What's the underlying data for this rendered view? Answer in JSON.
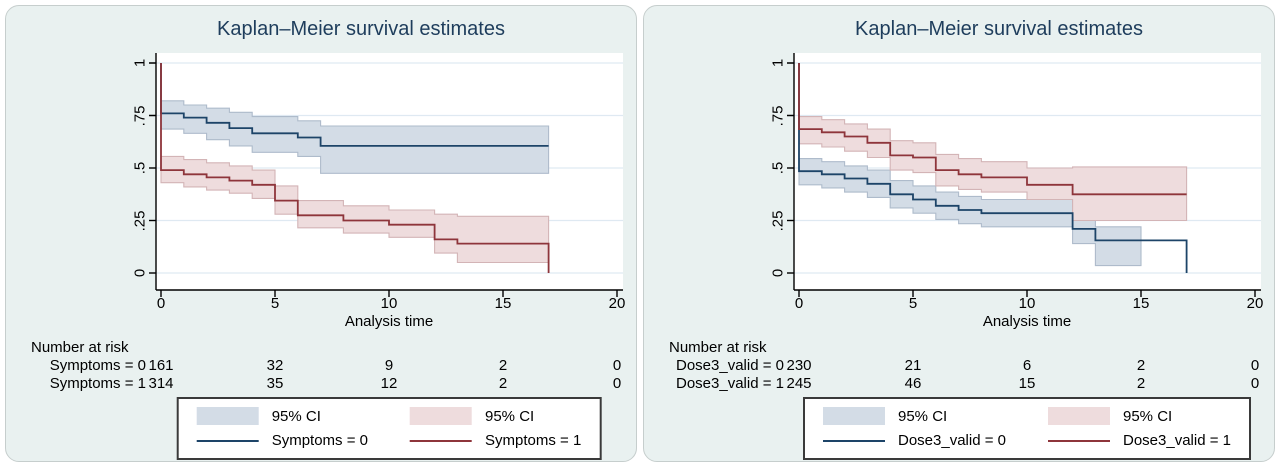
{
  "colors": {
    "page_bg": "#ffffff",
    "panel_bg": "#e9f1f0",
    "panel_border": "#c6cecd",
    "plot_bg": "#ffffff",
    "grid": "#dfe9f2",
    "axis": "#000000",
    "title_text": "#1e3d5c",
    "navy": {
      "line": "#1d4468",
      "band": "#d3dce6",
      "band_edge": "#aebbcb"
    },
    "red": {
      "line": "#8e353b",
      "band": "#eedcdd",
      "band_edge": "#d3b4b6"
    }
  },
  "chart_data": [
    {
      "type": "line",
      "subtype": "kaplan_meier_step_with_ci",
      "title": "Kaplan–Meier survival estimates",
      "xlabel": "Analysis time",
      "xlim": [
        0,
        20
      ],
      "ylim": [
        0,
        1
      ],
      "x_ticks": [
        0,
        5,
        10,
        15,
        20
      ],
      "y_ticks": [
        0,
        0.25,
        0.5,
        0.75,
        1
      ],
      "y_tick_labels": [
        "0",
        ".25",
        ".5",
        ".75",
        "1"
      ],
      "grid": "horizontal",
      "legend_position": "bottom-center",
      "legend": {
        "ci_labels": [
          "95% CI",
          "95% CI"
        ],
        "series_labels": [
          "Symptoms = 0",
          "Symptoms = 1"
        ]
      },
      "series": [
        {
          "name": "Symptoms = 0",
          "color_key": "navy",
          "steps_format": [
            "t",
            "survival",
            "ci_lower",
            "ci_upper"
          ],
          "steps": [
            [
              0,
              0.76,
              0.685,
              0.82
            ],
            [
              1,
              0.74,
              0.665,
              0.8
            ],
            [
              2,
              0.715,
              0.635,
              0.785
            ],
            [
              3,
              0.69,
              0.605,
              0.765
            ],
            [
              4,
              0.665,
              0.575,
              0.745
            ],
            [
              6,
              0.645,
              0.555,
              0.725
            ],
            [
              7,
              0.605,
              0.475,
              0.7
            ]
          ],
          "end_t": 17,
          "band_end_t": 17,
          "drop_to_zero_at_end": false
        },
        {
          "name": "Symptoms = 1",
          "color_key": "red",
          "steps_format": [
            "t",
            "survival",
            "ci_lower",
            "ci_upper"
          ],
          "steps": [
            [
              0,
              0.49,
              0.43,
              0.555
            ],
            [
              1,
              0.47,
              0.41,
              0.54
            ],
            [
              2,
              0.455,
              0.395,
              0.525
            ],
            [
              3,
              0.44,
              0.38,
              0.51
            ],
            [
              4,
              0.42,
              0.355,
              0.49
            ],
            [
              5,
              0.345,
              0.28,
              0.415
            ],
            [
              6,
              0.275,
              0.215,
              0.345
            ],
            [
              8,
              0.25,
              0.19,
              0.32
            ],
            [
              10,
              0.23,
              0.17,
              0.3
            ],
            [
              12,
              0.16,
              0.095,
              0.28
            ],
            [
              13,
              0.14,
              0.05,
              0.27
            ]
          ],
          "end_t": 17,
          "band_end_t": 17,
          "drop_to_zero_at_end": true
        }
      ],
      "risk_table": {
        "header": "Number at risk",
        "rows": [
          {
            "label": "Symptoms = 0",
            "values": [
              "161",
              "32",
              "9",
              "2",
              "0"
            ]
          },
          {
            "label": "Symptoms = 1",
            "values": [
              "314",
              "35",
              "12",
              "2",
              "0"
            ]
          }
        ]
      }
    },
    {
      "type": "line",
      "subtype": "kaplan_meier_step_with_ci",
      "title": "Kaplan–Meier survival estimates",
      "xlabel": "Analysis time",
      "xlim": [
        0,
        20
      ],
      "ylim": [
        0,
        1
      ],
      "x_ticks": [
        0,
        5,
        10,
        15,
        20
      ],
      "y_ticks": [
        0,
        0.25,
        0.5,
        0.75,
        1
      ],
      "y_tick_labels": [
        "0",
        ".25",
        ".5",
        ".75",
        "1"
      ],
      "grid": "horizontal",
      "legend_position": "bottom-center",
      "legend": {
        "ci_labels": [
          "95% CI",
          "95% CI"
        ],
        "series_labels": [
          "Dose3_valid = 0",
          "Dose3_valid = 1"
        ]
      },
      "series": [
        {
          "name": "Dose3_valid = 0",
          "color_key": "navy",
          "steps_format": [
            "t",
            "survival",
            "ci_lower",
            "ci_upper"
          ],
          "steps": [
            [
              0,
              0.485,
              0.42,
              0.545
            ],
            [
              1,
              0.47,
              0.405,
              0.53
            ],
            [
              2,
              0.45,
              0.385,
              0.51
            ],
            [
              3,
              0.425,
              0.36,
              0.49
            ],
            [
              4,
              0.375,
              0.31,
              0.44
            ],
            [
              5,
              0.35,
              0.285,
              0.415
            ],
            [
              6,
              0.32,
              0.255,
              0.385
            ],
            [
              7,
              0.3,
              0.235,
              0.365
            ],
            [
              8,
              0.285,
              0.22,
              0.35
            ],
            [
              12,
              0.21,
              0.14,
              0.315
            ],
            [
              13,
              0.155,
              0.035,
              0.22
            ]
          ],
          "end_t": 17,
          "band_end_t": 15,
          "drop_to_zero_at_end": true
        },
        {
          "name": "Dose3_valid = 1",
          "color_key": "red",
          "steps_format": [
            "t",
            "survival",
            "ci_lower",
            "ci_upper"
          ],
          "steps": [
            [
              0,
              0.685,
              0.615,
              0.745
            ],
            [
              1,
              0.67,
              0.6,
              0.73
            ],
            [
              2,
              0.65,
              0.58,
              0.71
            ],
            [
              3,
              0.62,
              0.55,
              0.685
            ],
            [
              4,
              0.56,
              0.49,
              0.63
            ],
            [
              5,
              0.55,
              0.478,
              0.62
            ],
            [
              6,
              0.49,
              0.415,
              0.565
            ],
            [
              7,
              0.47,
              0.398,
              0.545
            ],
            [
              8,
              0.455,
              0.385,
              0.53
            ],
            [
              10,
              0.42,
              0.35,
              0.5
            ],
            [
              12,
              0.375,
              0.25,
              0.505
            ]
          ],
          "end_t": 17,
          "band_end_t": 17,
          "drop_to_zero_at_end": false
        }
      ],
      "risk_table": {
        "header": "Number at risk",
        "rows": [
          {
            "label": "Dose3_valid = 0",
            "values": [
              "230",
              "21",
              "6",
              "2",
              "0"
            ]
          },
          {
            "label": "Dose3_valid = 1",
            "values": [
              "245",
              "46",
              "15",
              "2",
              "0"
            ]
          }
        ]
      }
    }
  ]
}
